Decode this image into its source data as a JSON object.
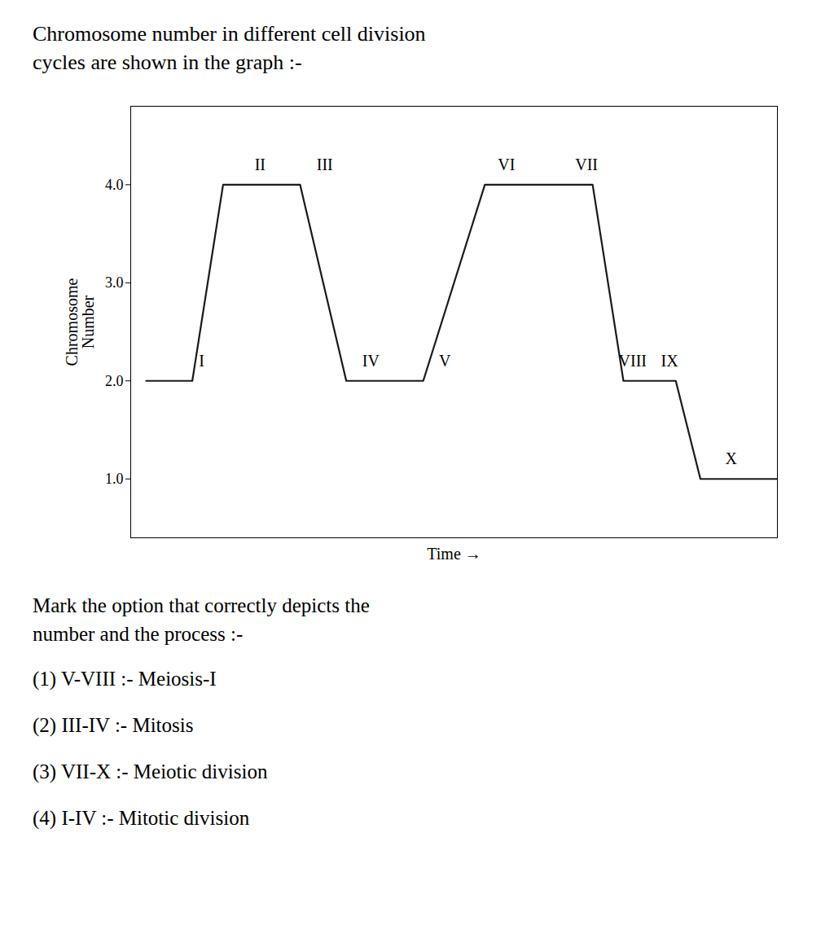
{
  "chart_data": {
    "type": "line",
    "title": "Chromosome number in different cell division",
    "subtitle": "cycles are shown in the graph :-",
    "xlabel": "Time →",
    "ylabel": "Chromosome\nNumber",
    "x": [
      0.5,
      2.0,
      3.0,
      5.5,
      7.0,
      8.5,
      9.5,
      11.5,
      13.0,
      15.0,
      16.0,
      17.0,
      17.7,
      18.5,
      21.0
    ],
    "values": [
      2,
      2,
      4,
      4,
      2,
      2,
      2,
      4,
      4,
      4,
      2,
      2,
      2,
      1,
      1
    ],
    "color": "#1a1a1a",
    "xlim": [
      0,
      21
    ],
    "xticks": [],
    "ylim": [
      0.4,
      4.8
    ],
    "yticks": [
      1,
      2,
      3,
      4
    ],
    "grid": false,
    "tick_labels": "y",
    "annotations": [
      {
        "text": "I",
        "x": 2.3,
        "y": 2.15
      },
      {
        "text": "II",
        "x": 4.2,
        "y": 4.15
      },
      {
        "text": "III",
        "x": 6.3,
        "y": 4.15
      },
      {
        "text": "IV",
        "x": 7.8,
        "y": 2.15
      },
      {
        "text": "V",
        "x": 10.2,
        "y": 2.15
      },
      {
        "text": "VI",
        "x": 12.2,
        "y": 4.15
      },
      {
        "text": "VII",
        "x": 14.8,
        "y": 4.15
      },
      {
        "text": "VIII",
        "x": 16.3,
        "y": 2.15
      },
      {
        "text": "IX",
        "x": 17.5,
        "y": 2.15
      },
      {
        "text": "X",
        "x": 19.5,
        "y": 1.15
      }
    ],
    "question": [
      "Mark the option that correctly depicts the",
      "number and the process :-"
    ],
    "options": [
      "(1) V-VIII :- Meiosis-I",
      "(2) III-IV :- Mitosis",
      "(3) VII-X :- Meiotic division",
      "(4) I-IV :- Mitotic division"
    ]
  }
}
